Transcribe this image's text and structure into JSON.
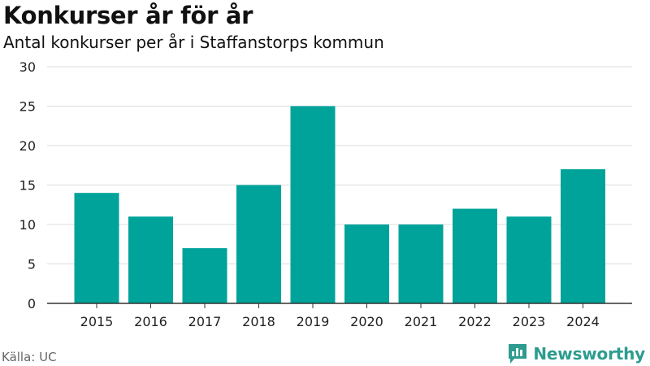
{
  "header": {
    "title": "Konkurser år för år",
    "subtitle": "Antal konkurser per år i Staffanstorps kommun"
  },
  "footer": {
    "source": "Källa: UC",
    "brand": "Newsworthy"
  },
  "colors": {
    "bar": "#00a39a",
    "grid": "#dddddd",
    "axis": "#333333",
    "brand": "#2d9c8f"
  },
  "chart_data": {
    "type": "bar",
    "title": "Konkurser år för år",
    "subtitle": "Antal konkurser per år i Staffanstorps kommun",
    "xlabel": "",
    "ylabel": "",
    "categories": [
      "2015",
      "2016",
      "2017",
      "2018",
      "2019",
      "2020",
      "2021",
      "2022",
      "2023",
      "2024"
    ],
    "values": [
      14,
      11,
      7,
      15,
      25,
      10,
      10,
      12,
      11,
      17
    ],
    "ylim": [
      0,
      30
    ],
    "yticks": [
      0,
      5,
      10,
      15,
      20,
      25,
      30
    ],
    "grid": true,
    "legend": "none"
  }
}
